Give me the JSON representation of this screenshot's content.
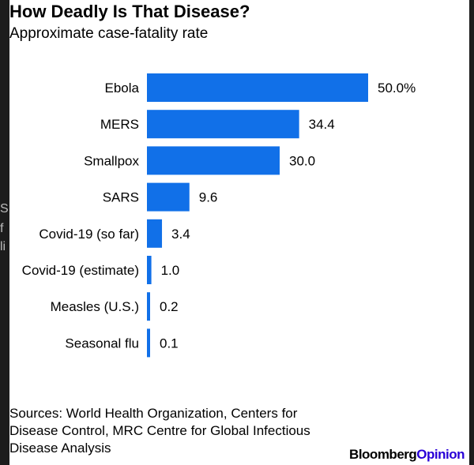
{
  "title": "How Deadly Is That Disease?",
  "subtitle": "Approximate case-fatality rate",
  "chart_data": {
    "type": "bar",
    "orientation": "horizontal",
    "categories": [
      "Ebola",
      "MERS",
      "Smallpox",
      "SARS",
      "Covid-19 (so far)",
      "Covid-19 (estimate)",
      "Measles (U.S.)",
      "Seasonal flu"
    ],
    "values": [
      50.0,
      34.4,
      30.0,
      9.6,
      3.4,
      1.0,
      0.2,
      0.1
    ],
    "value_labels": [
      "50.0%",
      "34.4",
      "30.0",
      "9.6",
      "3.4",
      "1.0",
      "0.2",
      "0.1"
    ],
    "unit": "%",
    "bar_color": "#1170e8",
    "grid": false,
    "title": "How Deadly Is That Disease?",
    "subtitle": "Approximate case-fatality rate",
    "xlim": [
      0,
      50
    ]
  },
  "sources": "Sources: World Health Organization, Centers for Disease Control, MRC Centre for Global Infectious Disease Analysis",
  "brand": {
    "part1": "Bloomberg",
    "part2": "Opinion"
  },
  "background_peek": [
    "S",
    "f",
    "li"
  ]
}
